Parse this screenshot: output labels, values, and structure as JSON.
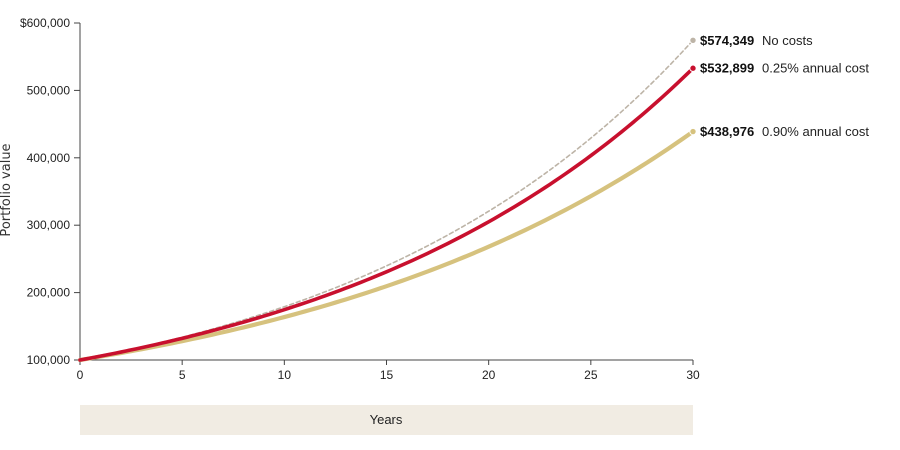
{
  "chart_data": {
    "type": "line",
    "ylabel": "Portfolio value",
    "xlabel": "Years",
    "xlim": [
      0,
      30
    ],
    "ylim": [
      100000,
      600000
    ],
    "x_ticks": [
      0,
      5,
      10,
      15,
      20,
      25,
      30
    ],
    "x_tick_labels": [
      "0",
      "5",
      "10",
      "15",
      "20",
      "25",
      "30"
    ],
    "y_ticks": [
      100000,
      200000,
      300000,
      400000,
      500000,
      600000
    ],
    "y_tick_labels": [
      "100,000",
      "200,000",
      "300,000",
      "400,000",
      "500,000",
      "$600,000"
    ],
    "grid": false,
    "series": [
      {
        "name": "No costs",
        "start": 100000,
        "end": 574349,
        "end_label": "$574,349",
        "color": "#bdb4a7",
        "style": "dashed"
      },
      {
        "name": "0.25% annual cost",
        "start": 100000,
        "end": 532899,
        "end_label": "$532,899",
        "color": "#c8102e",
        "style": "solid"
      },
      {
        "name": "0.90% annual cost",
        "start": 100000,
        "end": 438976,
        "end_label": "$438,976",
        "color": "#d6c27e",
        "style": "solid"
      }
    ],
    "xlabel_band_color": "#f1ece3"
  }
}
